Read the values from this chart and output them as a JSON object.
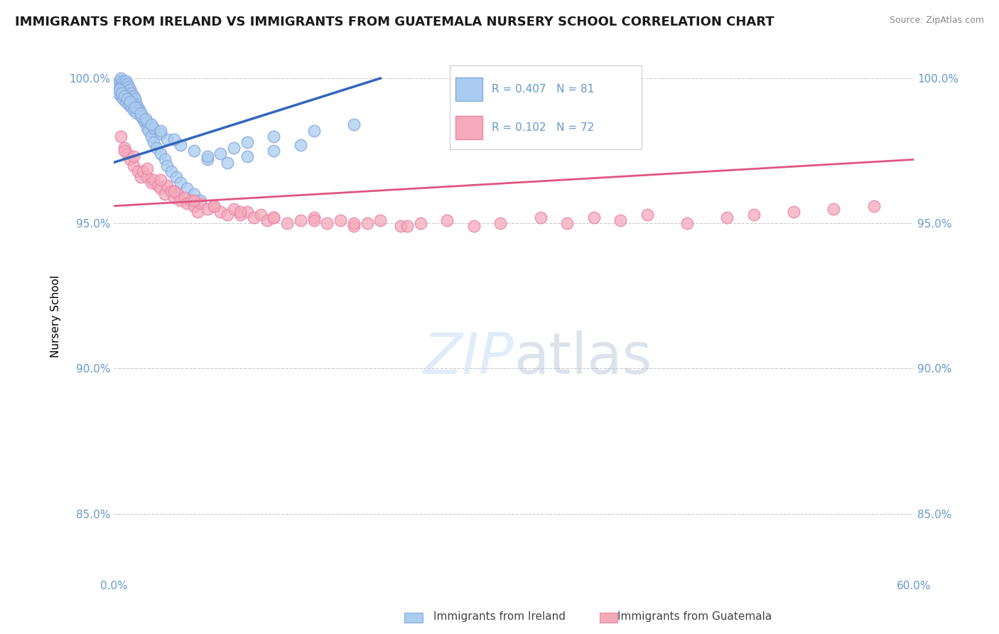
{
  "title": "IMMIGRANTS FROM IRELAND VS IMMIGRANTS FROM GUATEMALA NURSERY SCHOOL CORRELATION CHART",
  "source": "Source: ZipAtlas.com",
  "ylabel": "Nursery School",
  "xlim": [
    0.0,
    0.6
  ],
  "ylim": [
    0.828,
    1.008
  ],
  "yticks": [
    0.85,
    0.9,
    0.95,
    1.0
  ],
  "ytick_labels": [
    "85.0%",
    "90.0%",
    "95.0%",
    "100.0%"
  ],
  "xtick_left": "0.0%",
  "xtick_right": "60.0%",
  "ireland_R": 0.407,
  "ireland_N": 81,
  "guatemala_R": 0.102,
  "guatemala_N": 72,
  "ireland_color": "#aaccf0",
  "ireland_edge_color": "#88aadd",
  "ireland_line_color": "#3366bb",
  "guatemala_color": "#f5aabb",
  "guatemala_edge_color": "#e888aa",
  "guatemala_line_color": "#e05580",
  "watermark_color": "#c8ddf5",
  "background_color": "#ffffff",
  "grid_color": "#cccccc",
  "tick_color": "#6699cc",
  "ireland_x": [
    0.003,
    0.004,
    0.005,
    0.005,
    0.006,
    0.007,
    0.007,
    0.008,
    0.008,
    0.009,
    0.01,
    0.01,
    0.011,
    0.011,
    0.012,
    0.012,
    0.013,
    0.013,
    0.014,
    0.015,
    0.015,
    0.016,
    0.017,
    0.018,
    0.019,
    0.02,
    0.021,
    0.022,
    0.023,
    0.025,
    0.026,
    0.028,
    0.03,
    0.032,
    0.035,
    0.038,
    0.04,
    0.043,
    0.047,
    0.05,
    0.055,
    0.06,
    0.065,
    0.07,
    0.08,
    0.09,
    0.1,
    0.12,
    0.15,
    0.18,
    0.003,
    0.005,
    0.007,
    0.009,
    0.011,
    0.013,
    0.015,
    0.017,
    0.02,
    0.025,
    0.03,
    0.035,
    0.04,
    0.05,
    0.06,
    0.07,
    0.085,
    0.1,
    0.12,
    0.14,
    0.004,
    0.006,
    0.008,
    0.01,
    0.012,
    0.016,
    0.02,
    0.024,
    0.028,
    0.035,
    0.045
  ],
  "ireland_y": [
    0.998,
    0.999,
    1.0,
    0.997,
    0.998,
    0.999,
    0.996,
    0.997,
    0.998,
    0.999,
    0.997,
    0.998,
    0.996,
    0.997,
    0.995,
    0.996,
    0.994,
    0.995,
    0.993,
    0.994,
    0.992,
    0.993,
    0.991,
    0.99,
    0.989,
    0.988,
    0.987,
    0.986,
    0.985,
    0.983,
    0.982,
    0.98,
    0.978,
    0.976,
    0.974,
    0.972,
    0.97,
    0.968,
    0.966,
    0.964,
    0.962,
    0.96,
    0.958,
    0.972,
    0.974,
    0.976,
    0.978,
    0.98,
    0.982,
    0.984,
    0.995,
    0.994,
    0.993,
    0.992,
    0.991,
    0.99,
    0.989,
    0.988,
    0.987,
    0.985,
    0.983,
    0.981,
    0.979,
    0.977,
    0.975,
    0.973,
    0.971,
    0.973,
    0.975,
    0.977,
    0.996,
    0.995,
    0.994,
    0.993,
    0.992,
    0.99,
    0.988,
    0.986,
    0.984,
    0.982,
    0.979
  ],
  "guatemala_x": [
    0.005,
    0.008,
    0.01,
    0.012,
    0.015,
    0.018,
    0.02,
    0.022,
    0.025,
    0.028,
    0.03,
    0.033,
    0.035,
    0.038,
    0.04,
    0.043,
    0.045,
    0.048,
    0.05,
    0.053,
    0.055,
    0.058,
    0.06,
    0.063,
    0.065,
    0.07,
    0.075,
    0.08,
    0.085,
    0.09,
    0.095,
    0.1,
    0.105,
    0.11,
    0.115,
    0.12,
    0.13,
    0.14,
    0.15,
    0.16,
    0.17,
    0.18,
    0.19,
    0.2,
    0.215,
    0.23,
    0.25,
    0.27,
    0.29,
    0.32,
    0.34,
    0.36,
    0.38,
    0.4,
    0.43,
    0.46,
    0.48,
    0.51,
    0.54,
    0.57,
    0.008,
    0.015,
    0.025,
    0.035,
    0.045,
    0.06,
    0.075,
    0.095,
    0.12,
    0.15,
    0.18,
    0.22
  ],
  "guatemala_y": [
    0.98,
    0.976,
    0.974,
    0.972,
    0.97,
    0.968,
    0.966,
    0.968,
    0.966,
    0.964,
    0.965,
    0.963,
    0.962,
    0.96,
    0.963,
    0.961,
    0.959,
    0.96,
    0.958,
    0.959,
    0.957,
    0.958,
    0.956,
    0.954,
    0.957,
    0.955,
    0.956,
    0.954,
    0.953,
    0.955,
    0.953,
    0.954,
    0.952,
    0.953,
    0.951,
    0.952,
    0.95,
    0.951,
    0.952,
    0.95,
    0.951,
    0.949,
    0.95,
    0.951,
    0.949,
    0.95,
    0.951,
    0.949,
    0.95,
    0.952,
    0.95,
    0.952,
    0.951,
    0.953,
    0.95,
    0.952,
    0.953,
    0.954,
    0.955,
    0.956,
    0.975,
    0.973,
    0.969,
    0.965,
    0.961,
    0.958,
    0.956,
    0.954,
    0.952,
    0.951,
    0.95,
    0.949
  ],
  "ireland_trendline_x": [
    0.0,
    0.2
  ],
  "ireland_trendline_y": [
    0.971,
    1.0
  ],
  "guatemala_trendline_x": [
    0.0,
    0.6
  ],
  "guatemala_trendline_y": [
    0.956,
    0.972
  ]
}
